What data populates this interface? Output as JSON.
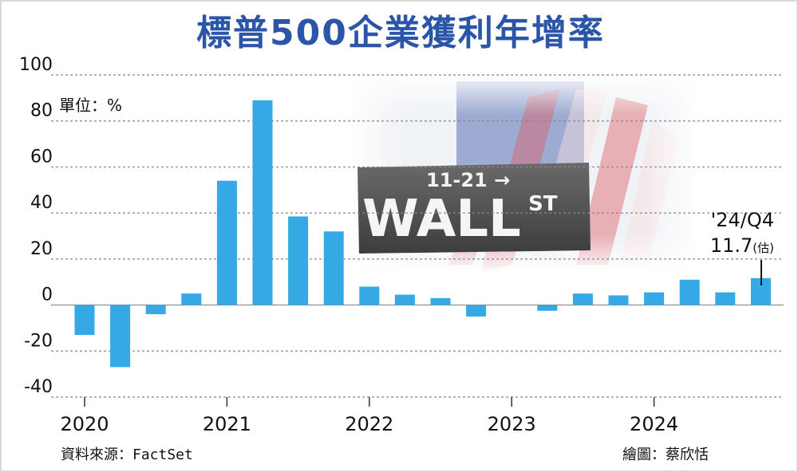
{
  "title": "標普500企業獲利年增率",
  "unit_label": "單位：%",
  "source": "資料來源：FactSet",
  "credit": "繪圖：蔡欣恬",
  "photo_sign": {
    "top_text": "11-21 →",
    "street": "WALL",
    "suffix": "ST"
  },
  "callout": {
    "quarter": "'24/Q4",
    "value": "11.7",
    "note": "(估)"
  },
  "colors": {
    "bar": "#35a8e6",
    "title": "#2a55a8",
    "grid": "#888888"
  },
  "chart_data": {
    "type": "bar",
    "categories": [
      "2020Q1",
      "2020Q2",
      "2020Q3",
      "2020Q4",
      "2021Q1",
      "2021Q2",
      "2021Q3",
      "2021Q4",
      "2022Q1",
      "2022Q2",
      "2022Q3",
      "2022Q4",
      "2023Q1",
      "2023Q2",
      "2023Q3",
      "2023Q4",
      "2024Q1",
      "2024Q2",
      "2024Q3",
      "2024Q4"
    ],
    "values": [
      -13,
      -27,
      -4,
      5,
      54,
      89,
      38.5,
      32,
      8,
      4.5,
      3,
      -5,
      0,
      -2.5,
      5,
      4.2,
      5.5,
      11,
      5.5,
      11.7
    ],
    "xtick_labels": [
      "2020",
      "2021",
      "2022",
      "2023",
      "2024"
    ],
    "ytick_labels": [
      "100",
      "80",
      "60",
      "40",
      "20",
      "0",
      "-20",
      "-40"
    ],
    "ylim": [
      -40,
      100
    ],
    "grid": true,
    "xlabel": "",
    "ylabel": ""
  }
}
